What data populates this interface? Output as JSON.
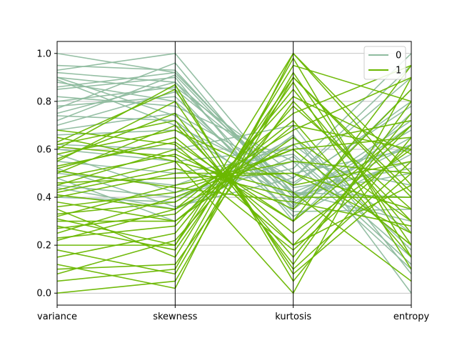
{
  "chart_data": {
    "type": "parallel_coordinates",
    "axes": [
      "variance",
      "skewness",
      "kurtosis",
      "entropy"
    ],
    "ylim": [
      -0.05,
      1.05
    ],
    "yticks": [
      "0.0",
      "0.2",
      "0.4",
      "0.6",
      "0.8",
      "1.0"
    ],
    "ytick_values": [
      0.0,
      0.2,
      0.4,
      0.6,
      0.8,
      1.0
    ],
    "grid": true,
    "legend_position": "top-right",
    "series": [
      {
        "name": "0",
        "color": "#8fbc9f",
        "lines": [
          [
            1.0,
            0.92,
            0.42,
            0.62
          ],
          [
            0.95,
            0.93,
            0.4,
            0.55
          ],
          [
            0.92,
            0.88,
            0.35,
            0.7
          ],
          [
            0.9,
            0.85,
            0.45,
            0.8
          ],
          [
            0.88,
            0.8,
            0.38,
            0.65
          ],
          [
            0.86,
            0.92,
            0.42,
            0.4
          ],
          [
            0.85,
            0.9,
            0.3,
            0.75
          ],
          [
            0.8,
            0.86,
            0.5,
            0.6
          ],
          [
            0.78,
            0.82,
            0.36,
            0.85
          ],
          [
            0.75,
            0.88,
            0.44,
            0.52
          ],
          [
            0.72,
            0.91,
            0.4,
            0.68
          ],
          [
            0.7,
            0.84,
            0.32,
            0.58
          ],
          [
            0.68,
            0.75,
            0.48,
            0.9
          ],
          [
            0.9,
            0.74,
            0.42,
            0.3
          ],
          [
            0.82,
            0.78,
            0.55,
            0.45
          ],
          [
            0.66,
            0.68,
            0.39,
            0.72
          ],
          [
            0.93,
            1.0,
            0.41,
            0.5
          ],
          [
            0.77,
            0.96,
            0.37,
            0.62
          ],
          [
            0.89,
            0.7,
            0.46,
            0.78
          ],
          [
            0.74,
            0.72,
            0.34,
            0.35
          ],
          [
            0.6,
            0.55,
            0.6,
            0.2
          ],
          [
            0.55,
            0.5,
            0.58,
            0.15
          ],
          [
            0.5,
            0.45,
            0.62,
            0.25
          ],
          [
            0.45,
            0.4,
            0.55,
            0.1
          ],
          [
            0.4,
            0.38,
            0.65,
            0.18
          ],
          [
            0.62,
            0.6,
            0.7,
            0.08
          ],
          [
            0.58,
            0.42,
            0.52,
            1.0
          ],
          [
            0.52,
            0.36,
            0.48,
            0.95
          ],
          [
            0.48,
            0.3,
            0.66,
            0.0
          ],
          [
            0.44,
            0.35,
            0.57,
            0.12
          ]
        ]
      },
      {
        "name": "1",
        "color": "#6ab700",
        "lines": [
          [
            0.0,
            0.05,
            0.9,
            0.4
          ],
          [
            0.1,
            0.12,
            0.8,
            0.3
          ],
          [
            0.2,
            0.2,
            1.0,
            0.5
          ],
          [
            0.3,
            0.3,
            0.7,
            0.6
          ],
          [
            0.25,
            0.4,
            0.6,
            0.2
          ],
          [
            0.35,
            0.15,
            0.95,
            0.8
          ],
          [
            0.4,
            0.5,
            0.5,
            0.35
          ],
          [
            0.45,
            0.6,
            0.3,
            0.7
          ],
          [
            0.5,
            0.7,
            0.2,
            0.45
          ],
          [
            0.55,
            0.8,
            0.1,
            0.55
          ],
          [
            0.6,
            0.87,
            0.05,
            0.65
          ],
          [
            0.65,
            0.55,
            0.0,
            0.9
          ],
          [
            0.15,
            0.25,
            0.85,
            0.25
          ],
          [
            0.05,
            0.1,
            0.98,
            0.15
          ],
          [
            0.22,
            0.35,
            0.75,
            0.95
          ],
          [
            0.32,
            0.45,
            0.55,
            0.5
          ],
          [
            0.42,
            0.52,
            0.4,
            0.4
          ],
          [
            0.52,
            0.65,
            0.25,
            0.6
          ],
          [
            0.62,
            0.72,
            0.15,
            0.75
          ],
          [
            0.38,
            0.3,
            0.65,
            0.3
          ],
          [
            0.28,
            0.18,
            0.88,
            0.1
          ],
          [
            0.18,
            0.08,
            0.92,
            0.2
          ],
          [
            0.48,
            0.58,
            0.35,
            0.85
          ],
          [
            0.58,
            0.68,
            0.45,
            0.55
          ],
          [
            0.68,
            0.62,
            0.2,
            0.7
          ],
          [
            0.12,
            0.02,
            1.0,
            0.45
          ],
          [
            0.08,
            0.22,
            0.78,
            0.35
          ],
          [
            0.36,
            0.42,
            0.6,
            0.65
          ],
          [
            0.46,
            0.48,
            0.5,
            0.25
          ],
          [
            0.56,
            0.75,
            0.12,
            0.8
          ],
          [
            0.27,
            0.33,
            0.72,
            0.15
          ],
          [
            0.33,
            0.38,
            0.68,
            0.9
          ],
          [
            0.43,
            0.55,
            0.42,
            0.05
          ],
          [
            0.53,
            0.63,
            0.3,
            0.95
          ],
          [
            0.63,
            0.85,
            0.08,
            0.5
          ],
          [
            0.23,
            0.28,
            0.82,
            0.58
          ],
          [
            0.31,
            0.2,
            0.9,
            0.42
          ],
          [
            0.41,
            0.35,
            0.62,
            0.72
          ],
          [
            0.51,
            0.44,
            0.38,
            0.28
          ],
          [
            0.61,
            0.57,
            0.18,
            0.62
          ]
        ]
      }
    ],
    "legend": [
      "0",
      "1"
    ]
  }
}
